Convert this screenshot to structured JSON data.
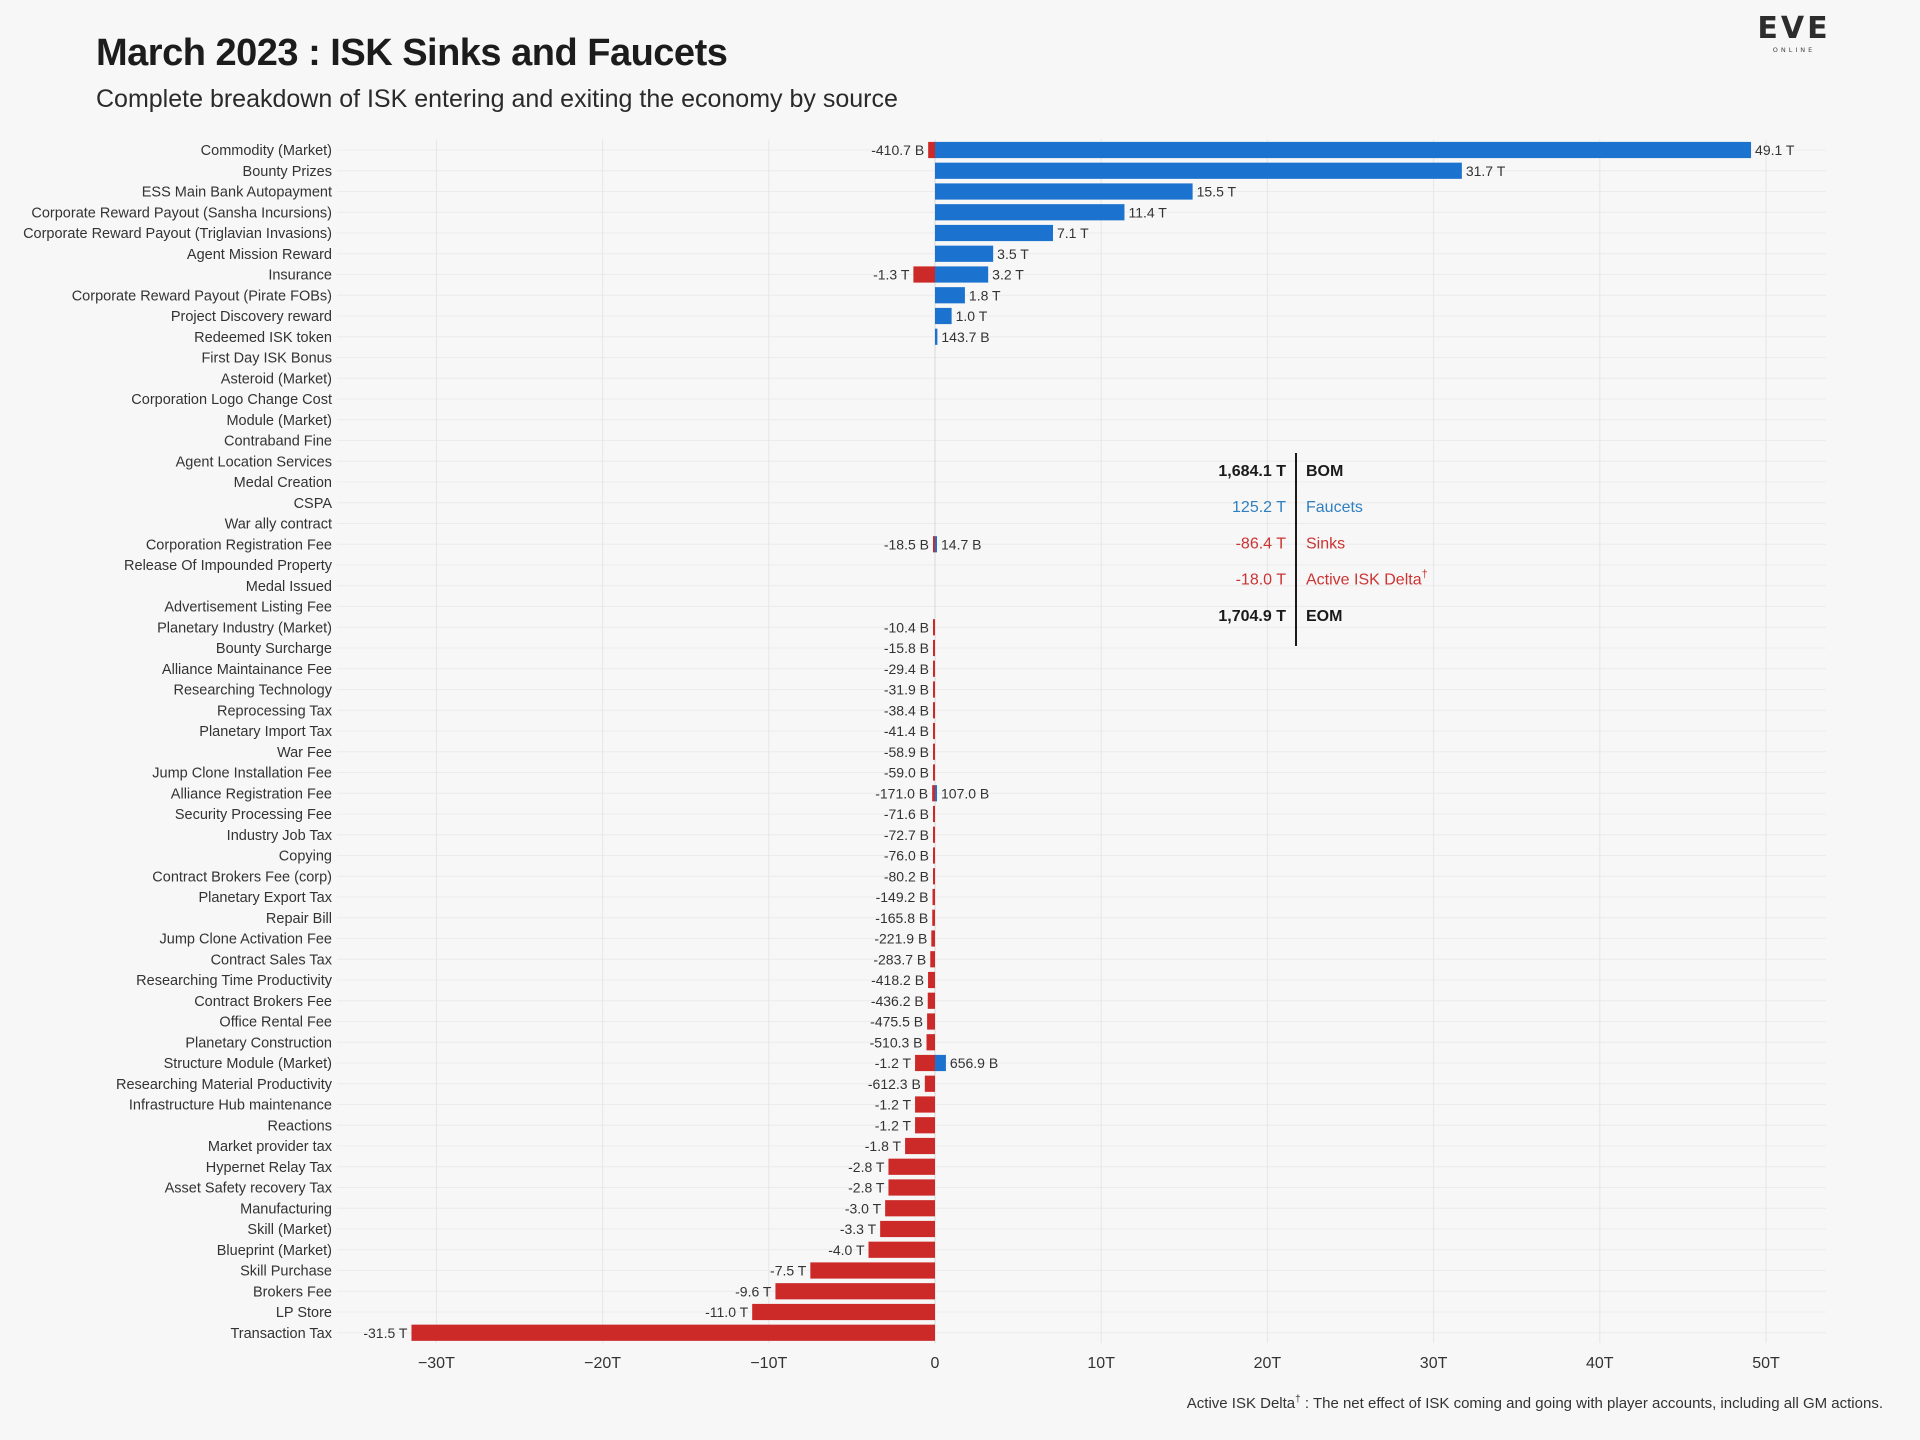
{
  "header": {
    "title": "March 2023 : ISK Sinks and Faucets",
    "subtitle": "Complete breakdown of ISK entering and exiting the economy by source"
  },
  "logo": {
    "text": "EVE",
    "subtext": "ONLINE"
  },
  "footnote": {
    "lead": "Active ISK Delta",
    "mark": "†",
    "text": " : The net effect of ISK coming and going with player accounts, including all GM actions."
  },
  "summary": [
    {
      "value": "1,684.1 T",
      "label": "BOM",
      "mark": "",
      "color": "#1a1a1a",
      "bold": true
    },
    {
      "value": "125.2 T",
      "label": "Faucets",
      "mark": "",
      "color": "#2f7fc1",
      "bold": false
    },
    {
      "value": "-86.4 T",
      "label": "Sinks",
      "mark": "",
      "color": "#cc3333",
      "bold": false
    },
    {
      "value": "-18.0 T",
      "label": "Active ISK Delta",
      "mark": "†",
      "color": "#cc3333",
      "bold": false
    },
    {
      "value": "1,704.9 T",
      "label": "EOM",
      "mark": "",
      "color": "#1a1a1a",
      "bold": true
    }
  ],
  "chart_data": {
    "type": "bar",
    "orientation": "horizontal",
    "units": "ISK (trillions)",
    "xlim": [
      -35,
      54
    ],
    "xticks": [
      -30,
      -20,
      -10,
      0,
      10,
      20,
      30,
      40,
      50
    ],
    "xtick_labels": [
      "−30T",
      "−20T",
      "−10T",
      "0",
      "10T",
      "20T",
      "30T",
      "40T",
      "50T"
    ],
    "grid": true,
    "colors": {
      "faucet": "#1b73cf",
      "sink": "#cc2929"
    },
    "categories": [
      "Commodity (Market)",
      "Bounty Prizes",
      "ESS Main Bank Autopayment",
      "Corporate Reward Payout (Sansha Incursions)",
      "Corporate Reward Payout (Triglavian Invasions)",
      "Agent Mission Reward",
      "Insurance",
      "Corporate Reward Payout (Pirate FOBs)",
      "Project Discovery reward",
      "Redeemed ISK token",
      "First Day ISK Bonus",
      "Asteroid (Market)",
      "Corporation Logo Change Cost",
      "Module (Market)",
      "Contraband Fine",
      "Agent Location Services",
      "Medal Creation",
      "CSPA",
      "War ally contract",
      "Corporation Registration Fee",
      "Release Of Impounded Property",
      "Medal Issued",
      "Advertisement Listing Fee",
      "Planetary Industry (Market)",
      "Bounty Surcharge",
      "Alliance Maintainance Fee",
      "Researching Technology",
      "Reprocessing Tax",
      "Planetary Import Tax",
      "War Fee",
      "Jump Clone Installation Fee",
      "Alliance Registration Fee",
      "Security Processing Fee",
      "Industry Job Tax",
      "Copying",
      "Contract Brokers Fee (corp)",
      "Planetary Export Tax",
      "Repair Bill",
      "Jump Clone Activation Fee",
      "Contract Sales Tax",
      "Researching Time Productivity",
      "Contract Brokers Fee",
      "Office Rental Fee",
      "Planetary Construction",
      "Structure Module (Market)",
      "Researching Material Productivity",
      "Infrastructure Hub maintenance",
      "Reactions",
      "Market provider tax",
      "Hypernet Relay Tax",
      "Asset Safety recovery Tax",
      "Manufacturing",
      "Skill (Market)",
      "Blueprint (Market)",
      "Skill Purchase",
      "Brokers Fee",
      "LP Store",
      "Transaction Tax"
    ],
    "series": [
      {
        "name": "Faucets",
        "values": [
          49.1,
          31.7,
          15.5,
          11.4,
          7.1,
          3.5,
          3.2,
          1.8,
          1.0,
          0.1437,
          0,
          0,
          0,
          0,
          0,
          0,
          0,
          0,
          0,
          0.0147,
          0,
          0,
          0,
          0,
          0,
          0,
          0,
          0,
          0,
          0,
          0,
          0.107,
          0,
          0,
          0,
          0,
          0,
          0,
          0,
          0,
          0,
          0,
          0,
          0,
          0.6569,
          0,
          0,
          0,
          0,
          0,
          0,
          0,
          0,
          0,
          0,
          0,
          0,
          0
        ],
        "labels": [
          "49.1 T",
          "31.7 T",
          "15.5 T",
          "11.4 T",
          "7.1 T",
          "3.5 T",
          "3.2 T",
          "1.8 T",
          "1.0 T",
          "143.7 B",
          "",
          "",
          "",
          "",
          "",
          "",
          "",
          "",
          "",
          "14.7 B",
          "",
          "",
          "",
          "",
          "",
          "",
          "",
          "",
          "",
          "",
          "",
          "107.0 B",
          "",
          "",
          "",
          "",
          "",
          "",
          "",
          "",
          "",
          "",
          "",
          "",
          "656.9 B",
          "",
          "",
          "",
          "",
          "",
          "",
          "",
          "",
          "",
          "",
          "",
          "",
          ""
        ]
      },
      {
        "name": "Sinks",
        "values": [
          -0.4107,
          0,
          0,
          0,
          0,
          0,
          -1.3,
          0,
          0,
          0,
          0,
          0,
          0,
          0,
          0,
          0,
          0,
          0,
          0,
          -0.0185,
          0,
          0,
          0,
          -0.0104,
          -0.0158,
          -0.0294,
          -0.0319,
          -0.0384,
          -0.0414,
          -0.0589,
          -0.059,
          -0.171,
          -0.0716,
          -0.0727,
          -0.076,
          -0.0802,
          -0.1492,
          -0.1658,
          -0.2219,
          -0.2837,
          -0.4182,
          -0.4362,
          -0.4755,
          -0.5103,
          -1.2,
          -0.6123,
          -1.2,
          -1.2,
          -1.8,
          -2.8,
          -2.8,
          -3.0,
          -3.3,
          -4.0,
          -7.5,
          -9.6,
          -11.0,
          -31.5
        ],
        "labels": [
          "-410.7 B",
          "",
          "",
          "",
          "",
          "",
          "-1.3 T",
          "",
          "",
          "",
          "",
          "",
          "",
          "",
          "",
          "",
          "",
          "",
          "",
          "-18.5 B",
          "",
          "",
          "",
          "-10.4 B",
          "-15.8 B",
          "-29.4 B",
          "-31.9 B",
          "-38.4 B",
          "-41.4 B",
          "-58.9 B",
          "-59.0 B",
          "-171.0 B",
          "-71.6 B",
          "-72.7 B",
          "-76.0 B",
          "-80.2 B",
          "-149.2 B",
          "-165.8 B",
          "-221.9 B",
          "-283.7 B",
          "-418.2 B",
          "-436.2 B",
          "-475.5 B",
          "-510.3 B",
          "-1.2 T",
          "-612.3 B",
          "-1.2 T",
          "-1.2 T",
          "-1.8 T",
          "-2.8 T",
          "-2.8 T",
          "-3.0 T",
          "-3.3 T",
          "-4.0 T",
          "-7.5 T",
          "-9.6 T",
          "-11.0 T",
          "-31.5 T"
        ]
      }
    ]
  }
}
